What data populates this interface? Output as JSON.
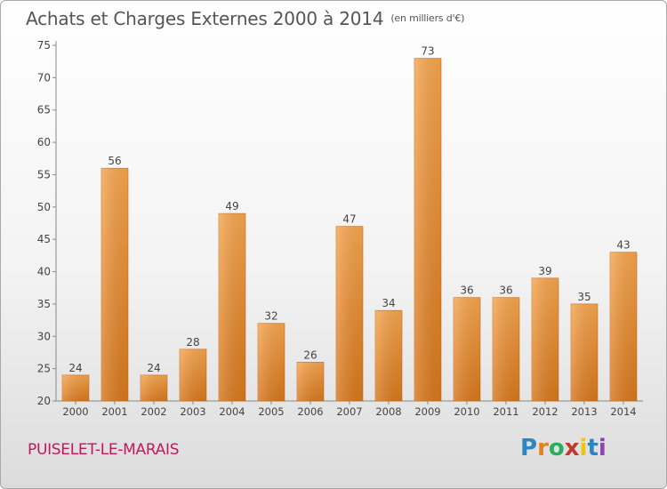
{
  "chart_data": {
    "type": "bar",
    "title": "Achats et Charges Externes 2000 à 2014",
    "unit_label": "(en milliers d'€)",
    "categories": [
      "2000",
      "2001",
      "2002",
      "2003",
      "2004",
      "2005",
      "2006",
      "2007",
      "2008",
      "2009",
      "2010",
      "2011",
      "2012",
      "2013",
      "2014"
    ],
    "values": [
      24,
      56,
      24,
      28,
      49,
      32,
      26,
      47,
      34,
      73,
      36,
      36,
      39,
      35,
      43
    ],
    "ylim": [
      20,
      75
    ],
    "yticks": [
      20,
      25,
      30,
      35,
      40,
      45,
      50,
      55,
      60,
      65,
      70,
      75
    ],
    "grid": false,
    "bar_color_top": "#f6a650",
    "bar_color_bottom": "#d8781d"
  },
  "location": "PUISELET-LE-MARAIS",
  "logo": {
    "letters": [
      "P",
      "r",
      "o",
      "x",
      "i",
      "t",
      "i"
    ],
    "colors": [
      "#2e86c1",
      "#e67e22",
      "#27ae60",
      "#c0392b",
      "#f1c40f",
      "#2e86c1",
      "#8e44ad"
    ]
  }
}
